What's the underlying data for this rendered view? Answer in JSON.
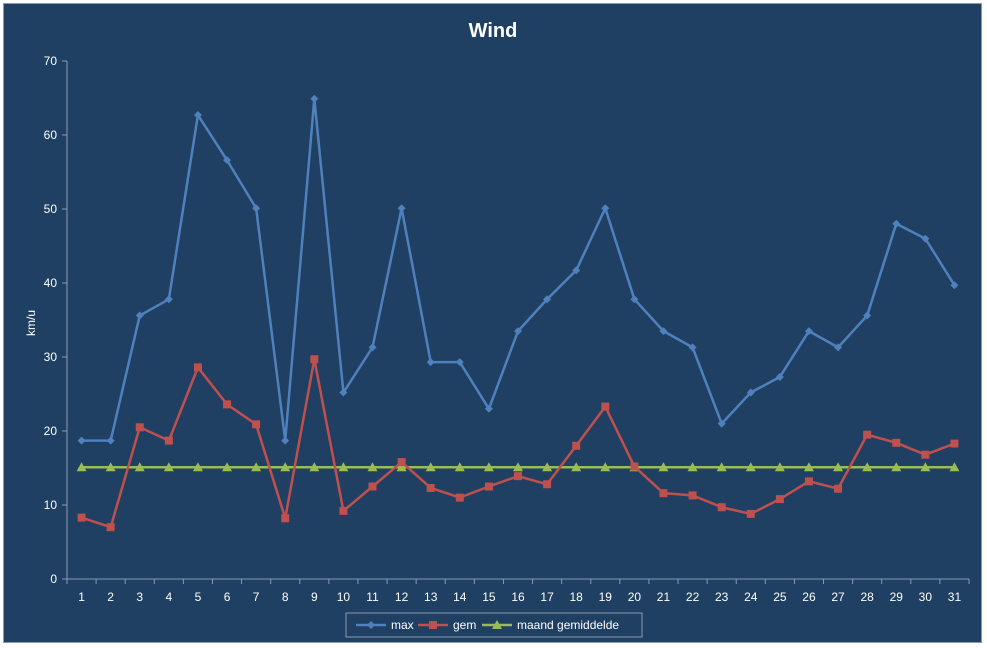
{
  "chart_data": {
    "type": "line",
    "title": "Wind",
    "xlabel": "",
    "ylabel": "km/u",
    "ylim": [
      0,
      70
    ],
    "yticks": [
      0,
      10,
      20,
      30,
      40,
      50,
      60,
      70
    ],
    "grid": false,
    "legend_position": "bottom",
    "categories": [
      "1",
      "2",
      "3",
      "4",
      "5",
      "6",
      "7",
      "8",
      "9",
      "10",
      "11",
      "12",
      "13",
      "14",
      "15",
      "16",
      "17",
      "18",
      "19",
      "20",
      "21",
      "22",
      "23",
      "24",
      "25",
      "26",
      "27",
      "28",
      "29",
      "30",
      "31"
    ],
    "series": [
      {
        "name": "max",
        "color": "#4f81bd",
        "marker": "diamond",
        "values": [
          18.7,
          18.7,
          35.6,
          37.8,
          62.7,
          56.6,
          50.1,
          18.7,
          64.9,
          25.2,
          31.3,
          50.1,
          29.3,
          29.3,
          23.0,
          33.5,
          37.8,
          41.7,
          50.1,
          37.8,
          33.5,
          31.3,
          21.0,
          25.2,
          27.3,
          33.5,
          31.3,
          35.6,
          48.0,
          46.0,
          39.7
        ]
      },
      {
        "name": "gem",
        "color": "#c0504d",
        "marker": "square",
        "values": [
          8.3,
          7.0,
          20.5,
          18.7,
          28.6,
          23.6,
          20.9,
          8.2,
          29.7,
          9.2,
          12.5,
          15.8,
          12.3,
          11.0,
          12.5,
          13.9,
          12.8,
          18.0,
          23.3,
          15.2,
          11.6,
          11.3,
          9.7,
          8.8,
          10.8,
          13.2,
          12.2,
          19.5,
          18.4,
          16.8,
          18.3
        ]
      },
      {
        "name": "maand gemiddelde",
        "color": "#9bbb59",
        "marker": "triangle",
        "values": [
          15.1,
          15.1,
          15.1,
          15.1,
          15.1,
          15.1,
          15.1,
          15.1,
          15.1,
          15.1,
          15.1,
          15.1,
          15.1,
          15.1,
          15.1,
          15.1,
          15.1,
          15.1,
          15.1,
          15.1,
          15.1,
          15.1,
          15.1,
          15.1,
          15.1,
          15.1,
          15.1,
          15.1,
          15.1,
          15.1,
          15.1
        ]
      }
    ]
  }
}
